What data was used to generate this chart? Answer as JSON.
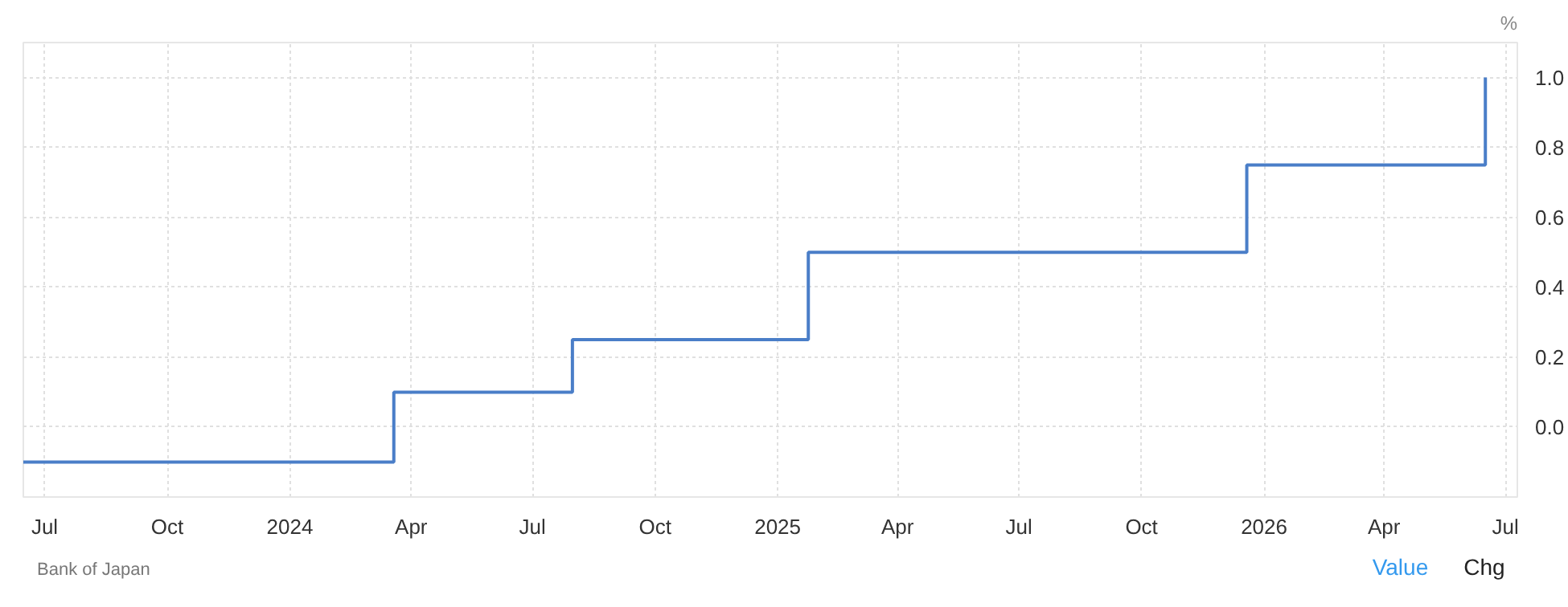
{
  "chart_data": {
    "type": "step",
    "ylabel": "%",
    "x": [
      "2023-06-15",
      "2024-03-19",
      "2024-07-31",
      "2025-01-24",
      "2025-12-19",
      "2026-06-16"
    ],
    "series": [
      {
        "color": "#4a7ec8",
        "values": [
          -0.1,
          0.1,
          0.25,
          0.5,
          0.75,
          1.0
        ]
      }
    ],
    "xlim": [
      "2023-06-15",
      "2026-07-10"
    ],
    "ylim": [
      -0.2,
      1.1
    ],
    "xticks": [
      {
        "value": "2023-07-01",
        "label": "Jul"
      },
      {
        "value": "2023-10-01",
        "label": "Oct"
      },
      {
        "value": "2024-01-01",
        "label": "2024"
      },
      {
        "value": "2024-04-01",
        "label": "Apr"
      },
      {
        "value": "2024-07-01",
        "label": "Jul"
      },
      {
        "value": "2024-10-01",
        "label": "Oct"
      },
      {
        "value": "2025-01-01",
        "label": "2025"
      },
      {
        "value": "2025-04-01",
        "label": "Apr"
      },
      {
        "value": "2025-07-01",
        "label": "Jul"
      },
      {
        "value": "2025-10-01",
        "label": "Oct"
      },
      {
        "value": "2026-01-01",
        "label": "2026"
      },
      {
        "value": "2026-04-01",
        "label": "Apr"
      },
      {
        "value": "2026-07-01",
        "label": "Jul"
      }
    ],
    "yticks": [
      {
        "value": 0,
        "label": "0.0"
      },
      {
        "value": 0.2,
        "label": "0.2"
      },
      {
        "value": 0.4,
        "label": "0.4"
      },
      {
        "value": 0.6,
        "label": "0.6"
      },
      {
        "value": 0.8,
        "label": "0.8"
      },
      {
        "value": 1.0,
        "label": "1.0"
      }
    ],
    "grid": true,
    "line_style": "solid",
    "annotations": [
      "Bank of Japan",
      "Value",
      "Chg"
    ]
  }
}
